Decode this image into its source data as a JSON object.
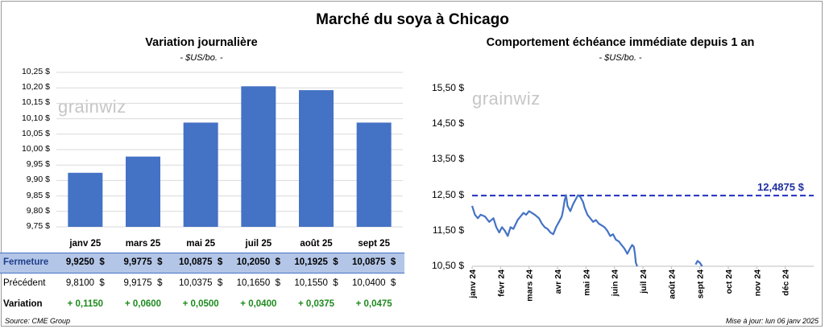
{
  "title": "Marché du soya à Chicago",
  "left_chart": {
    "title": "Variation journalière",
    "subtitle": "- $US/bo. -",
    "watermark": "grainwiz"
  },
  "right_chart": {
    "title": "Comportement échéance immédiate depuis 1 an",
    "subtitle": "- $US/bo. -",
    "watermark": "grainwiz",
    "ref_label": "12,4875 $"
  },
  "table": {
    "rows": [
      {
        "label": "Fermeture",
        "values": [
          "9,9250  $",
          "9,9775  $",
          "10,0875  $",
          "10,2050  $",
          "10,1925  $",
          "10,0875  $"
        ]
      },
      {
        "label": "Précédent",
        "values": [
          "9,8100  $",
          "9,9175  $",
          "10,0375  $",
          "10,1650  $",
          "10,1550  $",
          "10,0400  $"
        ]
      },
      {
        "label": "Variation",
        "values": [
          "+ 0,1150",
          "+ 0,0600",
          "+ 0,0500",
          "+ 0,0400",
          "+ 0,0375",
          "+ 0,0475"
        ]
      }
    ]
  },
  "footer": {
    "source": "Source: CME Group",
    "updated": "Mise à jour: lun 06 janv 2025"
  },
  "colors": {
    "bar": "#4472c4",
    "line": "#4472c4",
    "ref_line": "#1f2fc0",
    "positive": "#1e8a1e",
    "table_highlight": "#b4c6e7"
  },
  "chart_data": [
    {
      "type": "bar",
      "categories": [
        "janv 25",
        "mars 25",
        "mai 25",
        "juil 25",
        "août 25",
        "sept 25"
      ],
      "values": [
        9.925,
        9.9775,
        10.0875,
        10.205,
        10.1925,
        10.0875
      ],
      "ylim": [
        9.75,
        10.25
      ],
      "yticks": [
        "9,75 $",
        "9,80 $",
        "9,85 $",
        "9,90 $",
        "9,95 $",
        "10,00 $",
        "10,05 $",
        "10,10 $",
        "10,15 $",
        "10,20 $",
        "10,25 $"
      ],
      "grid": true
    },
    {
      "type": "line",
      "ylim": [
        10.5,
        15.5
      ],
      "yticks": [
        "10,50 $",
        "11,50 $",
        "12,50 $",
        "13,50 $",
        "14,50 $",
        "15,50 $"
      ],
      "x_labels": [
        "janv 24",
        "févr 24",
        "mars 24",
        "avr 24",
        "mai 24",
        "juin 24",
        "juil 24",
        "août 24",
        "sept 24",
        "oct 24",
        "nov 24",
        "déc 24"
      ],
      "reference_value": 12.4875,
      "series": [
        {
          "segments": [
            [
              [
                0,
                12.2
              ],
              [
                0.1,
                11.95
              ],
              [
                0.2,
                11.85
              ],
              [
                0.3,
                11.95
              ],
              [
                0.45,
                11.9
              ],
              [
                0.6,
                11.75
              ],
              [
                0.75,
                11.85
              ],
              [
                0.85,
                11.6
              ],
              [
                0.95,
                11.45
              ],
              [
                1.05,
                11.6
              ],
              [
                1.15,
                11.5
              ],
              [
                1.25,
                11.35
              ],
              [
                1.35,
                11.6
              ],
              [
                1.45,
                11.55
              ],
              [
                1.6,
                11.8
              ],
              [
                1.7,
                11.9
              ],
              [
                1.8,
                12.0
              ],
              [
                1.9,
                11.95
              ],
              [
                2.0,
                12.05
              ],
              [
                2.1,
                12.0
              ],
              [
                2.2,
                11.95
              ],
              [
                2.35,
                11.85
              ],
              [
                2.45,
                11.7
              ],
              [
                2.55,
                11.6
              ],
              [
                2.65,
                11.55
              ],
              [
                2.75,
                11.45
              ],
              [
                2.85,
                11.4
              ],
              [
                2.95,
                11.6
              ],
              [
                3.05,
                11.75
              ],
              [
                3.15,
                11.9
              ],
              [
                3.2,
                12.1
              ],
              [
                3.25,
                12.35
              ],
              [
                3.3,
                12.5
              ],
              [
                3.35,
                12.2
              ],
              [
                3.45,
                12.05
              ],
              [
                3.55,
                12.25
              ],
              [
                3.65,
                12.4
              ],
              [
                3.72,
                12.5
              ],
              [
                3.8,
                12.45
              ],
              [
                3.9,
                12.3
              ],
              [
                3.95,
                12.15
              ],
              [
                4.05,
                11.95
              ],
              [
                4.15,
                11.85
              ],
              [
                4.25,
                11.75
              ],
              [
                4.35,
                11.8
              ],
              [
                4.45,
                11.7
              ],
              [
                4.55,
                11.65
              ],
              [
                4.65,
                11.6
              ],
              [
                4.75,
                11.5
              ],
              [
                4.85,
                11.35
              ],
              [
                4.95,
                11.4
              ],
              [
                5.05,
                11.25
              ],
              [
                5.15,
                11.2
              ],
              [
                5.25,
                11.1
              ],
              [
                5.35,
                11.0
              ],
              [
                5.45,
                10.85
              ],
              [
                5.55,
                11.0
              ],
              [
                5.62,
                11.1
              ],
              [
                5.68,
                11.05
              ],
              [
                5.72,
                10.85
              ],
              [
                5.75,
                10.6
              ],
              [
                5.8,
                10.5
              ]
            ],
            [
              [
                7.85,
                10.55
              ],
              [
                7.92,
                10.65
              ],
              [
                8.0,
                10.6
              ],
              [
                8.08,
                10.5
              ]
            ]
          ]
        }
      ]
    }
  ]
}
